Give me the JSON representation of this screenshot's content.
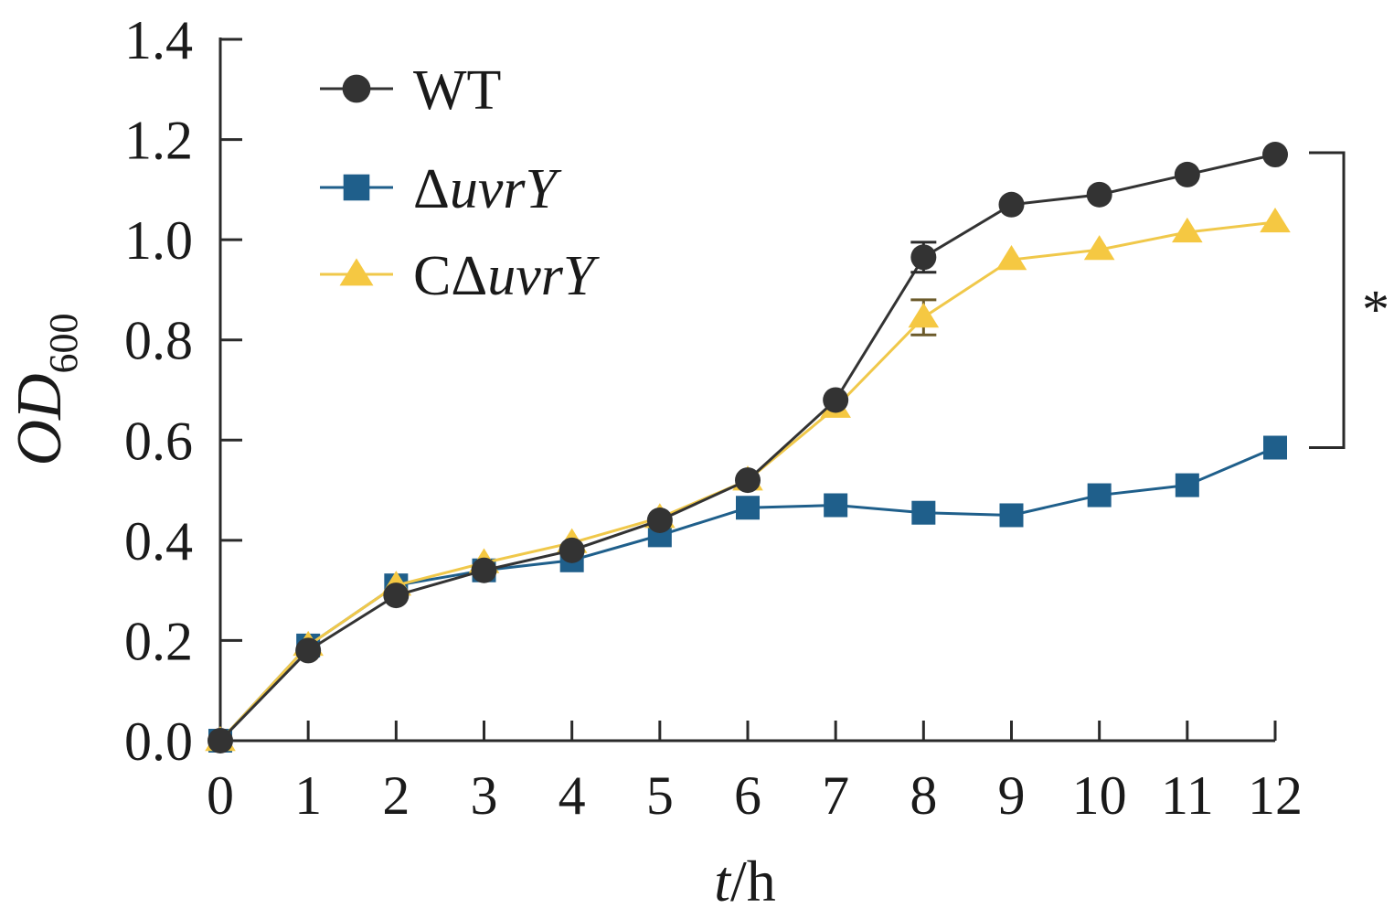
{
  "chart_data": {
    "type": "line",
    "x": [
      0,
      1,
      2,
      3,
      4,
      5,
      6,
      7,
      8,
      9,
      10,
      11,
      12
    ],
    "xlim": [
      0,
      12
    ],
    "ylim": [
      0,
      1.4
    ],
    "x_ticks": [
      "0",
      "1",
      "2",
      "3",
      "4",
      "5",
      "6",
      "7",
      "8",
      "9",
      "10",
      "11",
      "12"
    ],
    "y_ticks": [
      "0.0",
      "0.2",
      "0.4",
      "0.6",
      "0.8",
      "1.0",
      "1.2",
      "1.4"
    ],
    "xlabel": {
      "italic": "t",
      "rest": "/h"
    },
    "ylabel": {
      "main": "OD",
      "subscript": "600"
    },
    "grid": false,
    "legend_position": "top-left",
    "series": [
      {
        "name": "WT",
        "name_prefix": "",
        "name_italic": "",
        "marker": "circle",
        "color": "#333333",
        "line_color": "#333333",
        "values": [
          0.0,
          0.18,
          0.29,
          0.34,
          0.38,
          0.44,
          0.52,
          0.68,
          0.965,
          1.07,
          1.09,
          1.13,
          1.17
        ],
        "errors": [
          0,
          0,
          0,
          0,
          0,
          0,
          0,
          0,
          0.03,
          0,
          0,
          0,
          0
        ]
      },
      {
        "name": "ΔuvrY",
        "name_prefix": "Δ",
        "name_italic": "uvrY",
        "marker": "square",
        "color": "#1f5f8b",
        "line_color": "#1f5f8b",
        "values": [
          0.0,
          0.19,
          0.31,
          0.34,
          0.36,
          0.41,
          0.465,
          0.47,
          0.455,
          0.45,
          0.49,
          0.51,
          0.585
        ],
        "errors": [
          0,
          0,
          0,
          0,
          0,
          0,
          0,
          0,
          0,
          0,
          0,
          0,
          0
        ]
      },
      {
        "name": "CΔuvrY",
        "name_prefix": "CΔ",
        "name_italic": "uvrY",
        "marker": "triangle",
        "color": "#f5c842",
        "line_color": "#f0c84a",
        "values": [
          0.0,
          0.19,
          0.31,
          0.355,
          0.395,
          0.445,
          0.52,
          0.665,
          0.845,
          0.96,
          0.98,
          1.015,
          1.035
        ],
        "errors": [
          0,
          0,
          0,
          0,
          0,
          0,
          0,
          0,
          0.035,
          0,
          0,
          0,
          0
        ]
      }
    ],
    "annotations": [
      {
        "text": "*",
        "type": "significance-bracket",
        "y_range": [
          0.585,
          1.17
        ],
        "at_x": 12
      }
    ]
  },
  "colors": {
    "axis": "#2a2a2a",
    "text": "#1a1a1a"
  }
}
